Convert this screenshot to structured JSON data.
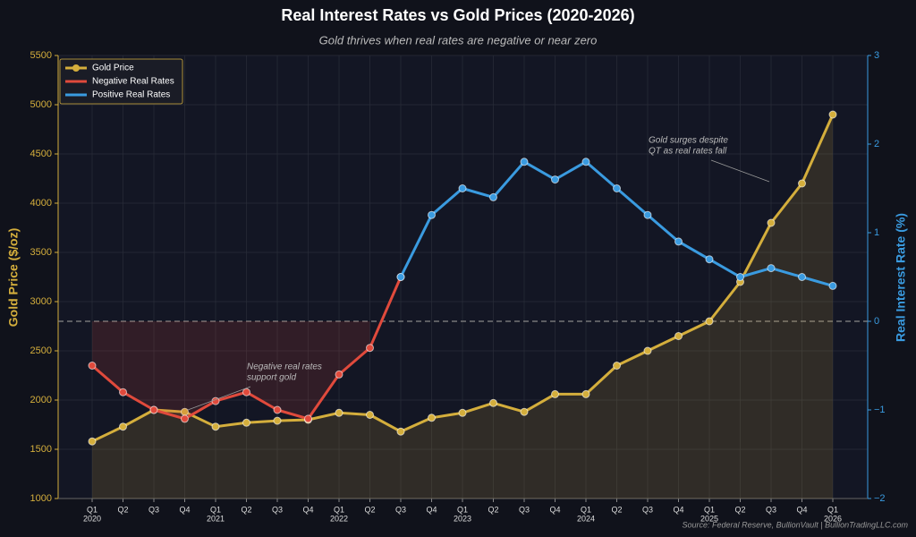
{
  "chart_data": {
    "type": "line",
    "title": "Real Interest Rates vs Gold Prices (2020-2026)",
    "subtitle": "Gold thrives when real rates are negative or near zero",
    "ylabel": "Gold Price ($/oz)",
    "y2label": "Real Interest Rate (%)",
    "source": "Source: Federal Reserve, BullionVault | BullionTradingLLC.com",
    "categories": [
      "Q1",
      "Q2",
      "Q3",
      "Q4",
      "Q1",
      "Q2",
      "Q3",
      "Q4",
      "Q1",
      "Q2",
      "Q3",
      "Q4",
      "Q1",
      "Q2",
      "Q3",
      "Q4",
      "Q1",
      "Q2",
      "Q3",
      "Q4",
      "Q1",
      "Q2",
      "Q3",
      "Q4",
      "Q1"
    ],
    "years": [
      "2020",
      null,
      null,
      null,
      "2021",
      null,
      null,
      null,
      "2022",
      null,
      null,
      null,
      "2023",
      null,
      null,
      null,
      "2024",
      null,
      null,
      null,
      "2025",
      null,
      null,
      null,
      "2026"
    ],
    "series": [
      {
        "name": "Gold Price",
        "color": "#d4ae3c",
        "axis": "y",
        "fill": true,
        "values": [
          1580,
          1730,
          1900,
          1880,
          1730,
          1770,
          1790,
          1800,
          1870,
          1850,
          1680,
          1820,
          1870,
          1970,
          1880,
          2060,
          2060,
          2350,
          2500,
          2650,
          2800,
          3200,
          3800,
          4200,
          4900
        ]
      },
      {
        "name": "Negative Real Rates",
        "color": "#e04a3c",
        "axis": "y2",
        "shade": true,
        "values": [
          -0.5,
          -0.8,
          -1.0,
          -1.1,
          -0.9,
          -0.8,
          -1.0,
          -1.1,
          -0.6,
          -0.3,
          0.5,
          null,
          null,
          null,
          null,
          null,
          null,
          null,
          null,
          null,
          null,
          null,
          null,
          null,
          null
        ]
      },
      {
        "name": "Positive Real Rates",
        "color": "#3a9be0",
        "axis": "y2",
        "values": [
          null,
          null,
          null,
          null,
          null,
          null,
          null,
          null,
          null,
          null,
          0.5,
          1.2,
          1.5,
          1.4,
          1.8,
          1.6,
          1.8,
          1.5,
          1.2,
          0.9,
          0.7,
          0.5,
          0.6,
          0.5,
          0.4
        ]
      }
    ],
    "ylim": [
      1000,
      5500
    ],
    "yticks": [
      1000,
      1500,
      2000,
      2500,
      3000,
      3500,
      4000,
      4500,
      5000,
      5500
    ],
    "y2lim": [
      -2,
      3
    ],
    "y2ticks": [
      {
        "value": -2,
        "label": "−2"
      },
      {
        "value": -1,
        "label": "−1"
      },
      0,
      1,
      2,
      3
    ],
    "grid": true,
    "zero_line": true,
    "legend": "upper left",
    "annotations": [
      {
        "lines": [
          "Negative real rates",
          "support gold"
        ]
      },
      {
        "lines": [
          "Gold surges despite",
          "QT as real rates fall"
        ]
      }
    ]
  }
}
